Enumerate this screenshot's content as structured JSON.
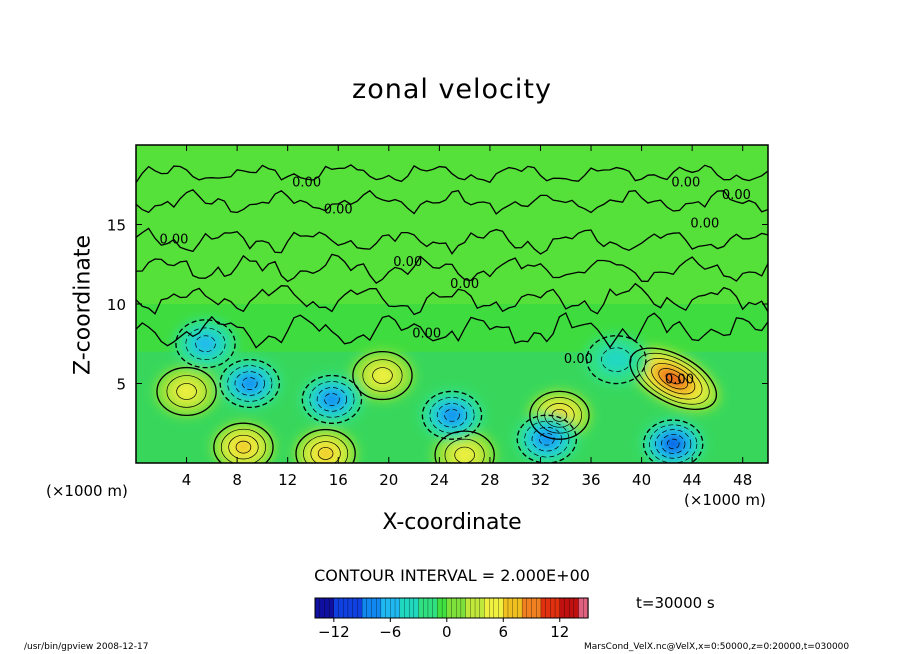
{
  "chart_data": {
    "type": "heatmap",
    "title": "zonal velocity",
    "xlabel": "X-coordinate",
    "ylabel": "Z-coordinate",
    "x_unit": "(×1000 m)",
    "xlim": [
      0,
      50
    ],
    "ylim": [
      0,
      20
    ],
    "x_ticks": [
      "4",
      "8",
      "12",
      "16",
      "20",
      "24",
      "28",
      "32",
      "36",
      "40",
      "44",
      "48"
    ],
    "x_tick_values": [
      4,
      8,
      12,
      16,
      20,
      24,
      28,
      32,
      36,
      40,
      44,
      48
    ],
    "y_ticks": [
      "5",
      "10",
      "15"
    ],
    "y_tick_values": [
      5,
      10,
      15
    ],
    "contour_interval": "CONTOUR INTERVAL = 2.000E+00",
    "contour_labels": [
      "0.00",
      "0.00",
      "0.00",
      "0.00",
      "0.00",
      "0.00",
      "0.00",
      "0.00",
      "0.00",
      "0.00",
      "0.00"
    ],
    "colorbar": {
      "min": -14,
      "max": 15,
      "tick_labels": [
        "−12",
        "−6",
        "0",
        "6",
        "12"
      ],
      "tick_values": [
        -12,
        -6,
        0,
        6,
        12
      ]
    },
    "features": [
      {
        "kind": "max",
        "x": 42.5,
        "z": 5.3,
        "value": 12
      },
      {
        "kind": "max",
        "x": 33.5,
        "z": 3.0,
        "value": 7
      },
      {
        "kind": "max",
        "x": 19.5,
        "z": 5.5,
        "value": 6
      },
      {
        "kind": "max",
        "x": 15.0,
        "z": 0.6,
        "value": 8
      },
      {
        "kind": "max",
        "x": 8.5,
        "z": 1.0,
        "value": 7
      },
      {
        "kind": "max",
        "x": 26.0,
        "z": 0.5,
        "value": 6
      },
      {
        "kind": "max",
        "x": 4.0,
        "z": 4.5,
        "value": 5
      },
      {
        "kind": "min",
        "x": 42.5,
        "z": 1.2,
        "value": -9
      },
      {
        "kind": "min",
        "x": 32.5,
        "z": 1.5,
        "value": -8
      },
      {
        "kind": "min",
        "x": 25.0,
        "z": 3.0,
        "value": -7
      },
      {
        "kind": "min",
        "x": 15.5,
        "z": 4.0,
        "value": -8
      },
      {
        "kind": "min",
        "x": 9.0,
        "z": 5.0,
        "value": -7
      },
      {
        "kind": "min",
        "x": 5.5,
        "z": 7.5,
        "value": -6
      },
      {
        "kind": "min",
        "x": 38.0,
        "z": 6.5,
        "value": -3
      }
    ]
  },
  "time_label": "t=30000 s",
  "footer_left": "/usr/bin/gpview   2008-12-17",
  "footer_right": "MarsCond_VelX.nc@VelX,x=0:50000,z=0:20000,t=030000",
  "colors": {
    "background_field": "#3fdc3f",
    "upper_field": "#55e03a",
    "positive_1": "#aee03a",
    "positive_2": "#e8e84a",
    "positive_3": "#f0b020",
    "positive_4": "#e86020",
    "positive_5": "#c01010",
    "negative_1": "#30d080",
    "negative_2": "#20c8c8",
    "negative_3": "#20a8f0",
    "negative_4": "#1060e0"
  }
}
